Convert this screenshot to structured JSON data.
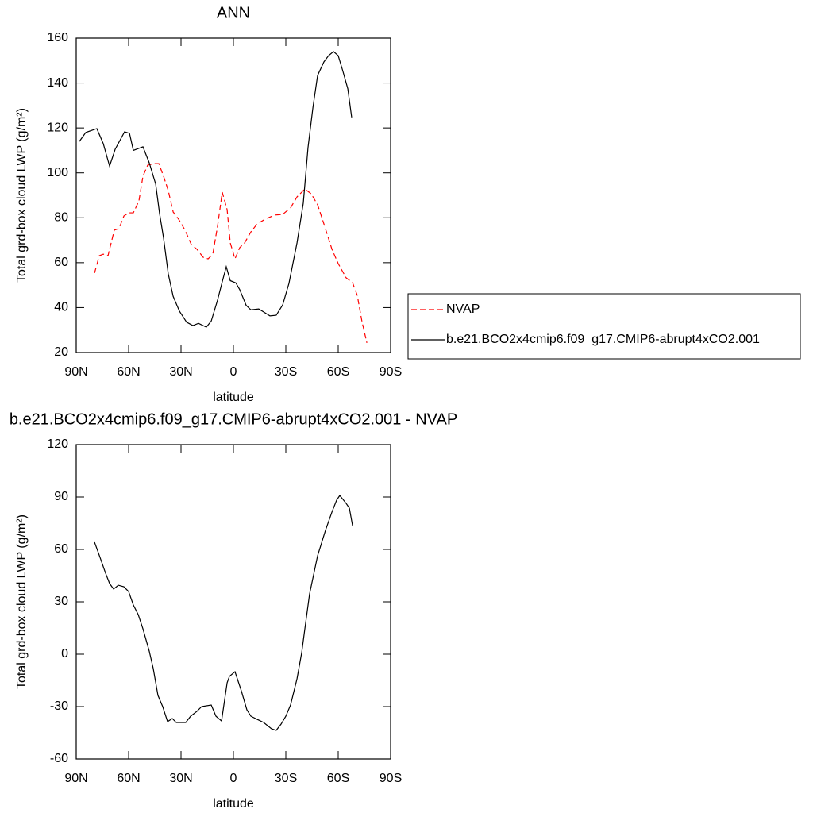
{
  "chart_data": [
    {
      "type": "line",
      "title": "ANN",
      "x_label": "latitude",
      "y_label": "Total grd-box cloud LWP (g/m²)",
      "xlim": [
        90,
        -90
      ],
      "xticks": [
        {
          "value": 90,
          "label": "90N"
        },
        {
          "value": 60,
          "label": "60N"
        },
        {
          "value": 30,
          "label": "30N"
        },
        0,
        {
          "value": -30,
          "label": "30S"
        },
        {
          "value": -60,
          "label": "60S"
        },
        {
          "value": -90,
          "label": "90S"
        }
      ],
      "ylim": [
        20,
        160
      ],
      "yticks": [
        20,
        40,
        60,
        80,
        100,
        120,
        140,
        160
      ],
      "legend": "right",
      "series": [
        {
          "name": "NVAP",
          "color": "#ff0000",
          "dashed": true,
          "x": [
            79.5,
            76.8,
            74.5,
            71.8,
            68.2,
            65.5,
            62.7,
            60,
            57.3,
            54.1,
            51.8,
            49.1,
            45.9,
            42.7,
            40,
            37.3,
            34.5,
            31.4,
            27.7,
            24.1,
            20.9,
            17.3,
            14.5,
            11.8,
            9.1,
            6.4,
            3.6,
            1.8,
            -0.9,
            -3.6,
            -6.4,
            -10,
            -13.6,
            -18.2,
            -23.6,
            -28.2,
            -32.7,
            -36.4,
            -40.9,
            -44.5,
            -48.2,
            -51.8,
            -56.4,
            -60,
            -64.5,
            -68.2,
            -70.9,
            -73.6,
            -76.4
          ],
          "values": [
            55.4,
            63.1,
            63.8,
            63.1,
            74.5,
            75.2,
            80.8,
            82.2,
            82.2,
            87.5,
            98.5,
            103.4,
            104.1,
            104.1,
            98.5,
            92.1,
            82.6,
            79.4,
            74.5,
            68.1,
            66,
            62.4,
            61.7,
            63.8,
            76.2,
            91.4,
            83.6,
            68.8,
            61.7,
            66.7,
            68.8,
            73.7,
            77.3,
            79.4,
            81.2,
            81.5,
            84.4,
            89.3,
            92.8,
            90.7,
            85.8,
            77.3,
            66,
            59.6,
            53.3,
            51.1,
            45.5,
            33.8,
            24.3
          ]
        },
        {
          "name": "b.e21.BCO2x4cmip6.f09_g17.CMIP6-abrupt4xCO2.001",
          "color": "#000000",
          "dashed": false,
          "x": [
            88.2,
            84.5,
            78.2,
            74.5,
            70.9,
            67.7,
            62.3,
            59.5,
            57.3,
            51.8,
            48.2,
            44.5,
            42.3,
            40,
            37.3,
            34.5,
            30.9,
            26.8,
            23.2,
            20,
            15.5,
            12.7,
            9.1,
            6.4,
            4.1,
            1.8,
            -1.4,
            -3.6,
            -7.3,
            -10,
            -14.5,
            -20.9,
            -24.5,
            -28.2,
            -31.8,
            -36.4,
            -40,
            -42.7,
            -45.5,
            -48.2,
            -51.8,
            -54.5,
            -57.3,
            -60,
            -62.7,
            -65.5,
            -67.7
          ],
          "values": [
            114,
            118,
            119.7,
            113,
            103,
            110.5,
            118.3,
            117.6,
            110,
            111.6,
            104.5,
            95,
            82,
            71,
            55,
            45,
            38.4,
            33.5,
            32,
            33,
            31.3,
            34,
            43.3,
            51.5,
            58.2,
            52,
            51,
            48,
            41,
            39,
            39.4,
            36.3,
            36.6,
            41.2,
            50.8,
            68.8,
            86.5,
            111.2,
            129,
            143.4,
            149.4,
            152.2,
            154,
            152.2,
            145.2,
            137.4,
            124.7
          ]
        }
      ]
    },
    {
      "type": "line",
      "title": "b.e21.BCO2x4cmip6.f09_g17.CMIP6-abrupt4xCO2.001 - NVAP",
      "x_label": "latitude",
      "y_label": "Total grd-box cloud LWP (g/m²)",
      "xlim": [
        90,
        -90
      ],
      "xticks": [
        {
          "value": 90,
          "label": "90N"
        },
        {
          "value": 60,
          "label": "60N"
        },
        {
          "value": 30,
          "label": "30N"
        },
        0,
        {
          "value": -30,
          "label": "30S"
        },
        {
          "value": -60,
          "label": "60S"
        },
        {
          "value": -90,
          "label": "90S"
        }
      ],
      "ylim": [
        -60,
        120
      ],
      "yticks": [
        -60,
        -30,
        0,
        30,
        60,
        90,
        120
      ],
      "series": [
        {
          "color": "#000000",
          "dashed": false,
          "x": [
            79.5,
            75.9,
            73.2,
            70.9,
            68.6,
            65.9,
            62.7,
            60,
            57.3,
            54.5,
            51.8,
            48.2,
            45.9,
            43.2,
            40.5,
            37.7,
            35,
            32.7,
            27.3,
            24.5,
            20.9,
            18.2,
            12.7,
            10,
            6.8,
            3.6,
            2.3,
            -0.9,
            -4.5,
            -7.7,
            -10,
            -13.6,
            -17.3,
            -21.8,
            -24.5,
            -27.3,
            -30,
            -32.7,
            -36.4,
            -39.1,
            -40.9,
            -43.6,
            -48.2,
            -52.7,
            -56.4,
            -59.1,
            -60.9,
            -64.5,
            -66.4,
            -68.2
          ],
          "values": [
            64.1,
            54.1,
            46.4,
            40.5,
            37.3,
            39.5,
            38.6,
            35.9,
            28.2,
            22.7,
            14.5,
            1.8,
            -8.2,
            -23.6,
            -30,
            -38.6,
            -36.8,
            -39.1,
            -39.1,
            -35.5,
            -32.7,
            -30,
            -29.1,
            -35.5,
            -38.2,
            -16.4,
            -12.7,
            -10,
            -20.9,
            -31.8,
            -35.5,
            -37.3,
            -39.1,
            -42.7,
            -43.6,
            -40,
            -35.5,
            -29.1,
            -14.1,
            0.9,
            14.5,
            34.5,
            56.4,
            70.9,
            81.4,
            88.2,
            90.9,
            86.4,
            83.6,
            73.6
          ]
        }
      ]
    }
  ]
}
